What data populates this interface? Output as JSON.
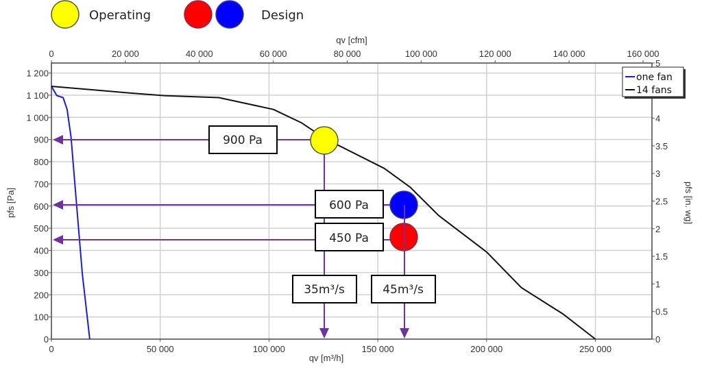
{
  "colors": {
    "operating": "#ffff00",
    "design_high": "#0000ff",
    "design_low": "#ff0000",
    "annotation": "#7030a0",
    "one_fan": "#1a1adc",
    "fourteen_fans": "#111111",
    "grid": "#d0d0d0"
  },
  "key": {
    "operating_label": "Operating",
    "design_label": "Design"
  },
  "annotations": {
    "op_pressure": "900 Pa",
    "design_pressure_high": "600 Pa",
    "design_pressure_low": "450 Pa",
    "op_flow": "35m³/s",
    "design_flow": "45m³/s"
  },
  "chart_data": {
    "type": "line",
    "xlabel": "qv [m³/h]",
    "x2label": "qv [cfm]",
    "ylabel": "pfs [Pa]",
    "y2label": "pfs [in. wg]",
    "xlim": [
      0,
      276000
    ],
    "ylim": [
      0,
      1245
    ],
    "x2lim": [
      0,
      162400
    ],
    "y2lim": [
      0,
      5
    ],
    "grid": true,
    "legend_position": "top-right",
    "x_ticks": [
      {
        "value": 0,
        "label": "0"
      },
      {
        "value": 50000,
        "label": "50 000"
      },
      {
        "value": 100000,
        "label": "100 000"
      },
      {
        "value": 150000,
        "label": "150 000"
      },
      {
        "value": 200000,
        "label": "200 000"
      },
      {
        "value": 250000,
        "label": "250 000"
      }
    ],
    "x2_ticks": [
      {
        "value": 0,
        "label": "0"
      },
      {
        "value": 20000,
        "label": "20 000"
      },
      {
        "value": 40000,
        "label": "40 000"
      },
      {
        "value": 60000,
        "label": "60 000"
      },
      {
        "value": 80000,
        "label": "80 000"
      },
      {
        "value": 100000,
        "label": "100 000"
      },
      {
        "value": 120000,
        "label": "120 000"
      },
      {
        "value": 140000,
        "label": "140 000"
      },
      {
        "value": 160000,
        "label": "160 000"
      }
    ],
    "y_ticks": [
      {
        "value": 0,
        "label": "0"
      },
      {
        "value": 100,
        "label": "100"
      },
      {
        "value": 200,
        "label": "200"
      },
      {
        "value": 300,
        "label": "300"
      },
      {
        "value": 400,
        "label": "400"
      },
      {
        "value": 500,
        "label": "500"
      },
      {
        "value": 600,
        "label": "600"
      },
      {
        "value": 700,
        "label": "700"
      },
      {
        "value": 800,
        "label": "800"
      },
      {
        "value": 900,
        "label": "900"
      },
      {
        "value": 1000,
        "label": "1 000"
      },
      {
        "value": 1100,
        "label": "1 100"
      },
      {
        "value": 1200,
        "label": "1 200"
      }
    ],
    "y2_ticks": [
      {
        "value": 0,
        "label": "0"
      },
      {
        "value": 0.5,
        "label": "0.5"
      },
      {
        "value": 1,
        "label": "1"
      },
      {
        "value": 1.5,
        "label": "1.5"
      },
      {
        "value": 2,
        "label": "2"
      },
      {
        "value": 2.5,
        "label": "2.5"
      },
      {
        "value": 3,
        "label": "3"
      },
      {
        "value": 3.5,
        "label": "3.5"
      },
      {
        "value": 4,
        "label": "4"
      },
      {
        "value": 5,
        "label": "5"
      }
    ],
    "series": [
      {
        "name": "one fan",
        "color": "#1a1adc",
        "x": [
          0,
          2500,
          5400,
          7200,
          9000,
          11600,
          14200,
          17600
        ],
        "y": [
          1140,
          1098,
          1089,
          1036,
          912,
          603,
          294,
          0
        ]
      },
      {
        "name": "14 fans",
        "color": "#111111",
        "x": [
          0,
          36000,
          52000,
          77000,
          102000,
          115000,
          126000,
          153000,
          165000,
          178000,
          200000,
          216000,
          235000,
          250000
        ],
        "y": [
          1140,
          1110,
          1098,
          1089,
          1036,
          975,
          903,
          770,
          684,
          557,
          393,
          232,
          114,
          0
        ]
      }
    ],
    "points": [
      {
        "name": "operating",
        "x": 126000,
        "y": 900,
        "color": "#ffff00"
      },
      {
        "name": "design-high",
        "x": 162000,
        "y": 600,
        "color": "#0000ff"
      },
      {
        "name": "design-low",
        "x": 162000,
        "y": 450,
        "color": "#ff0000"
      }
    ]
  }
}
